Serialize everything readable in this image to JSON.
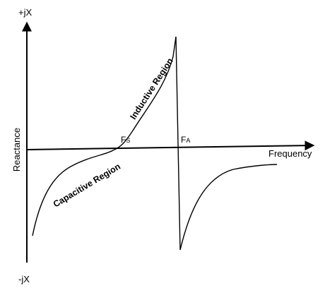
{
  "axes": {
    "y_top_label": "+jX",
    "y_bottom_label": "-jX",
    "y_title": "Reactance",
    "x_title": "Frequency"
  },
  "points": {
    "fs": {
      "main": "F",
      "sub": "S"
    },
    "fa": {
      "main": "F",
      "sub": "A"
    }
  },
  "regions": {
    "inductive": "Inductive Region",
    "capacitive": "Capacitive Region"
  },
  "colors": {
    "stroke": "#000000",
    "background": "#ffffff"
  }
}
